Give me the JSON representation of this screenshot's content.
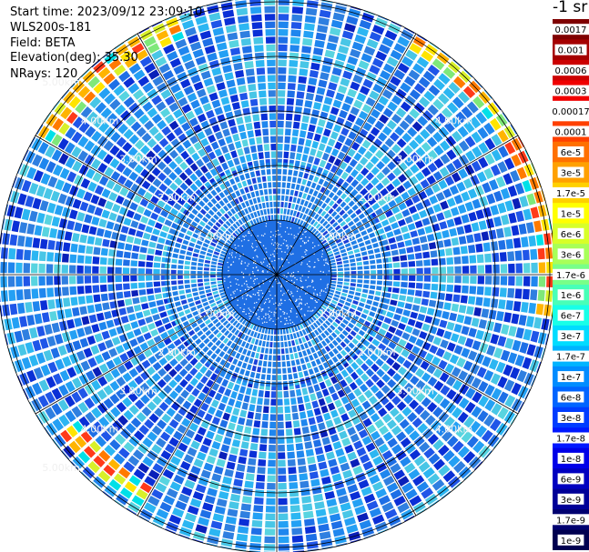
{
  "header": {
    "start_time": "Start time: 2023/09/12 23:09:10",
    "instrument": "WLS200s-181",
    "field": "Field: BETA",
    "elevation": "Elevation(deg): 35.30",
    "nrays": "NRays: 120"
  },
  "colorbar": {
    "unit_label": "-1 sr",
    "labels": [
      "0.0017",
      "0.001",
      "0.0006",
      "0.0003",
      "0.00017",
      "0.0001",
      "6e-5",
      "3e-5",
      "1.7e-5",
      "1e-5",
      "6e-6",
      "3e-6",
      "1.7e-6",
      "1e-6",
      "6e-7",
      "3e-7",
      "1.7e-7",
      "1e-7",
      "6e-8",
      "3e-8",
      "1.7e-8",
      "1e-8",
      "6e-9",
      "3e-9",
      "1.7e-9",
      "1e-9"
    ],
    "colors": [
      "#7f0000",
      "#a50000",
      "#cc0000",
      "#f00000",
      "#ffffff",
      "#ff4000",
      "#ff7000",
      "#ffa000",
      "#ffd000",
      "#ffff00",
      "#d8ff28",
      "#a8ff58",
      "#78ff88",
      "#48ffb8",
      "#18ffe8",
      "#00dcff",
      "#00b4ff",
      "#008cff",
      "#0064ff",
      "#003cff",
      "#0018ff",
      "#0000e8",
      "#0000c0",
      "#000098",
      "#000070",
      "#000050"
    ]
  },
  "chart_data": {
    "type": "heatmap",
    "projection": "polar-ppi",
    "nrays": 120,
    "range_rings_km": [
      1,
      2,
      3,
      4,
      5
    ],
    "range_labels": {
      "upper_left": [
        "1.00km",
        "2.00km",
        "3.00km",
        "4.00km",
        "5.00km"
      ],
      "upper_right": [
        "1.00km",
        "2.00km",
        "3.00km",
        "4.00km"
      ],
      "lower_left": [
        "1.00km",
        "2.00km",
        "3.00km",
        "4.00km",
        "5.00km"
      ],
      "lower_right": [
        "1.00km",
        "2.00km",
        "3.00km",
        "4.00km"
      ]
    },
    "max_range_km": 5.1,
    "spoke_angles_deg": [
      0,
      30,
      60,
      90,
      120,
      150,
      180,
      210,
      240,
      270,
      300,
      330
    ],
    "typical_beta": "1.7e-7 to 1e-6",
    "high_beta_arcs": [
      {
        "azimuth_deg": [
          300,
          340
        ],
        "range_km": [
          4.6,
          5.05
        ],
        "beta": "1e-5 to 1e-4"
      },
      {
        "azimuth_deg": [
          30,
          60
        ],
        "range_km": [
          4.7,
          5.05
        ],
        "beta": "1e-5 to 1e-4"
      },
      {
        "azimuth_deg": [
          60,
          100
        ],
        "range_km": [
          4.8,
          5.1
        ],
        "beta": "1e-5 to 3e-5"
      },
      {
        "azimuth_deg": [
          210,
          235
        ],
        "range_km": [
          4.4,
          4.9
        ],
        "beta": "1e-5 to 1e-4"
      }
    ]
  }
}
